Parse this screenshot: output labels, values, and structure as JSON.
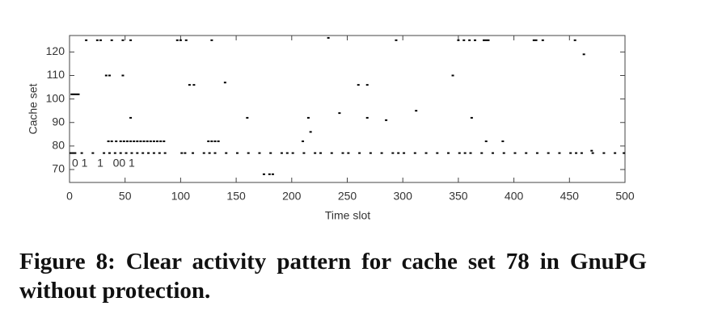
{
  "chart_data": {
    "type": "scatter",
    "xlabel": "Time slot",
    "ylabel": "Cache set",
    "xlim": [
      0,
      500
    ],
    "ylim": [
      64.5,
      127
    ],
    "xticks": [
      0,
      50,
      100,
      150,
      200,
      250,
      300,
      350,
      400,
      450,
      500
    ],
    "yticks": [
      70,
      80,
      90,
      100,
      110,
      120
    ],
    "annotation": "0 1   1   00 1",
    "series": [
      {
        "name": null,
        "color": "#000000",
        "x": [
          1,
          3,
          5,
          11,
          21,
          31,
          36,
          41,
          46,
          51,
          56,
          61,
          66,
          71,
          76,
          81,
          86,
          101,
          104,
          111,
          121,
          126,
          131,
          141,
          151,
          161,
          171,
          181,
          191,
          196,
          201,
          211,
          221,
          226,
          236,
          246,
          251,
          261,
          271,
          281,
          291,
          296,
          301,
          311,
          321,
          331,
          341,
          351,
          356,
          361,
          371,
          381,
          391,
          401,
          411,
          421,
          431,
          441,
          451,
          456,
          461,
          471,
          481,
          491,
          499,
          35,
          38,
          42,
          46,
          49,
          52,
          55,
          58,
          61,
          64,
          67,
          70,
          73,
          76,
          79,
          82,
          85,
          125,
          128,
          131,
          134,
          210,
          375,
          390,
          15,
          25,
          28,
          38,
          48,
          55,
          97,
          100,
          105,
          128,
          233,
          294,
          350,
          355,
          360,
          365,
          373,
          375,
          377,
          418,
          420,
          426,
          455,
          2,
          4,
          6,
          8,
          33,
          36,
          48,
          345,
          108,
          112,
          140,
          260,
          268,
          55,
          160,
          215,
          268,
          362,
          243,
          312,
          285,
          217,
          463,
          175,
          180,
          183,
          470
        ],
        "y": [
          77,
          77,
          77,
          77,
          77,
          77,
          77,
          77,
          77,
          77,
          77,
          77,
          77,
          77,
          77,
          77,
          77,
          77,
          77,
          77,
          77,
          77,
          77,
          77,
          77,
          77,
          77,
          77,
          77,
          77,
          77,
          77,
          77,
          77,
          77,
          77,
          77,
          77,
          77,
          77,
          77,
          77,
          77,
          77,
          77,
          77,
          77,
          77,
          77,
          77,
          77,
          77,
          77,
          77,
          77,
          77,
          77,
          77,
          77,
          77,
          77,
          77,
          77,
          77,
          77,
          82,
          82,
          82,
          82,
          82,
          82,
          82,
          82,
          82,
          82,
          82,
          82,
          82,
          82,
          82,
          82,
          82,
          82,
          82,
          82,
          82,
          82,
          82,
          82,
          125,
          125,
          125,
          125,
          125,
          125,
          125,
          125,
          125,
          125,
          126,
          125,
          125,
          125,
          125,
          125,
          125,
          125,
          125,
          125,
          125,
          125,
          125,
          102,
          102,
          102,
          102,
          110,
          110,
          110,
          110,
          106,
          106,
          107,
          106,
          106,
          92,
          92,
          92,
          92,
          92,
          94,
          95,
          91,
          86,
          119,
          68,
          68,
          68,
          78
        ]
      }
    ]
  },
  "caption": "Figure 8: Clear activity pattern for cache set 78 in GnuPG without protection."
}
